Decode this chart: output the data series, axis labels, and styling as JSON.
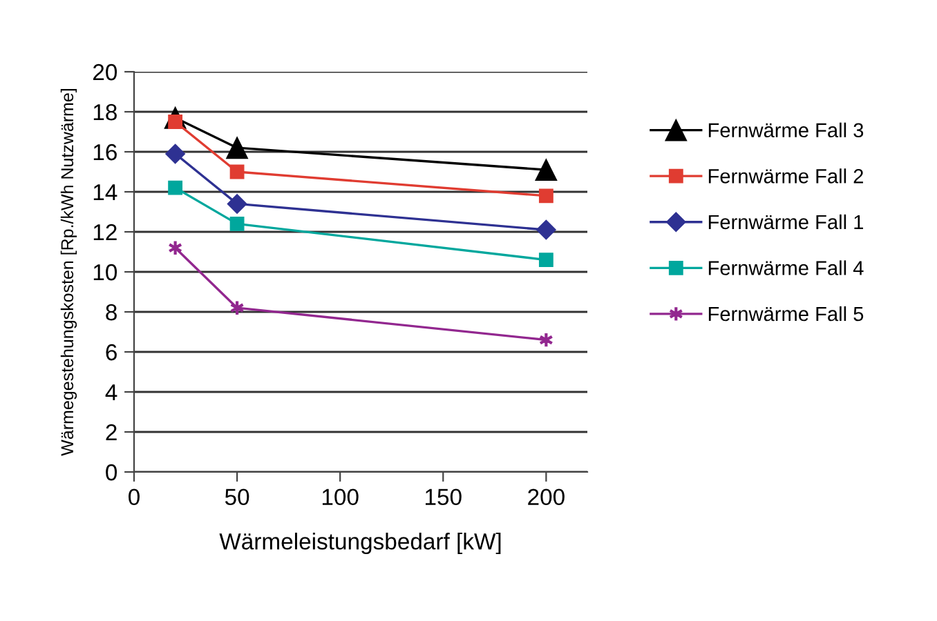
{
  "chart_data": {
    "type": "line",
    "xlabel": "Wärmeleistungsbedarf [kW]",
    "ylabel": "Wärmegestehungskosten [Rp./kWh Nutzwärme]",
    "x": [
      20,
      50,
      200
    ],
    "series": [
      {
        "name": "Fernwärme Fall 3",
        "color": "#000000",
        "marker": "triangle",
        "values": [
          17.7,
          16.2,
          15.1
        ]
      },
      {
        "name": "Fernwärme Fall 2",
        "color": "#e03c31",
        "marker": "square",
        "values": [
          17.5,
          15.0,
          13.8
        ]
      },
      {
        "name": "Fernwärme Fall 1",
        "color": "#2e3192",
        "marker": "diamond",
        "values": [
          15.9,
          13.4,
          12.1
        ]
      },
      {
        "name": "Fernwärme Fall 4",
        "color": "#00a79d",
        "marker": "square",
        "values": [
          14.2,
          12.4,
          10.6
        ]
      },
      {
        "name": "Fernwärme Fall 5",
        "color": "#92278f",
        "marker": "cross",
        "values": [
          11.2,
          8.2,
          6.6
        ]
      }
    ],
    "xlim": [
      0,
      220
    ],
    "xticks": [
      0,
      50,
      100,
      150,
      200
    ],
    "ylim": [
      0,
      20
    ],
    "yticks": [
      0,
      2,
      4,
      6,
      8,
      10,
      12,
      14,
      16,
      18,
      20
    ],
    "grid": "y",
    "legend": "right",
    "line_style": "solid"
  }
}
